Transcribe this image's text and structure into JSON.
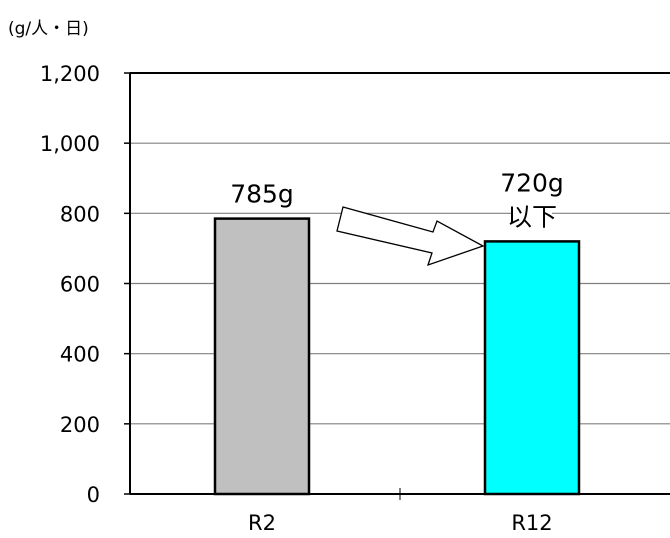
{
  "chart_data": {
    "type": "bar",
    "unit_label": "(g/人・日)",
    "categories": [
      "R2",
      "R12"
    ],
    "values": [
      785,
      720
    ],
    "data_labels": [
      [
        "785g"
      ],
      [
        "720g",
        "以下"
      ]
    ],
    "bar_colors": [
      "#c0c0c0",
      "#00ffff"
    ],
    "yticks": [
      "0",
      "200",
      "400",
      "600",
      "800",
      "1,000",
      "1,200"
    ],
    "ylim": [
      0,
      1200
    ],
    "grid": true,
    "annotation": "arrow from R2 bar to R12 bar"
  }
}
